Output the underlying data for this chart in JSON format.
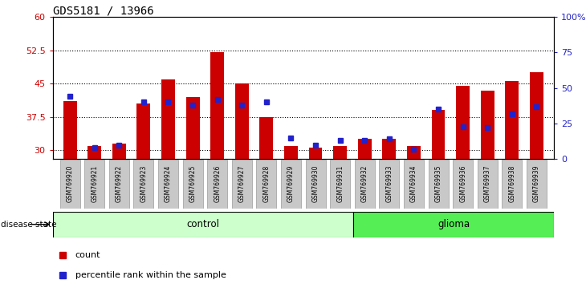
{
  "title": "GDS5181 / 13966",
  "samples": [
    "GSM769920",
    "GSM769921",
    "GSM769922",
    "GSM769923",
    "GSM769924",
    "GSM769925",
    "GSM769926",
    "GSM769927",
    "GSM769928",
    "GSM769929",
    "GSM769930",
    "GSM769931",
    "GSM769932",
    "GSM769933",
    "GSM769934",
    "GSM769935",
    "GSM769936",
    "GSM769937",
    "GSM769938",
    "GSM769939"
  ],
  "counts": [
    41.0,
    31.0,
    31.5,
    40.5,
    46.0,
    42.0,
    52.0,
    45.0,
    37.5,
    31.0,
    30.5,
    31.0,
    32.5,
    32.5,
    31.0,
    39.0,
    44.5,
    43.5,
    45.5,
    47.5
  ],
  "percentile_ranks": [
    44,
    8,
    10,
    40,
    40,
    38,
    42,
    38,
    40,
    15,
    10,
    13,
    13,
    14,
    7,
    35,
    23,
    22,
    32,
    37
  ],
  "control_count": 12,
  "glioma_count": 8,
  "bar_color": "#cc0000",
  "dot_color": "#2222cc",
  "ylim_left": [
    28,
    60
  ],
  "ylim_right": [
    0,
    100
  ],
  "yticks_left": [
    30,
    37.5,
    45,
    52.5,
    60
  ],
  "yticks_right": [
    0,
    25,
    50,
    75,
    100
  ],
  "ytick_labels_left": [
    "30",
    "37.5",
    "45",
    "52.5",
    "60"
  ],
  "ytick_labels_right": [
    "0",
    "25",
    "50",
    "75",
    "100%"
  ],
  "control_color": "#ccffcc",
  "glioma_color": "#55ee55",
  "xticklabel_bg": "#c8c8c8"
}
